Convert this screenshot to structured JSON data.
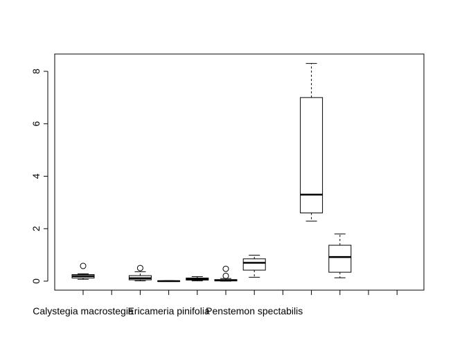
{
  "chart_data": {
    "type": "box",
    "title": "",
    "xlabel": "",
    "ylabel": "",
    "ylim": [
      0,
      8
    ],
    "y_ticks": [
      "0",
      "2",
      "4",
      "6",
      "8"
    ],
    "x_tick_count": 12,
    "category_labels": [
      {
        "text": "Calystegia macrostegia",
        "position": 1
      },
      {
        "text": "Ericameria pinifolia",
        "position": 4
      },
      {
        "text": "Penstemon spectabilis",
        "position": 7
      }
    ],
    "boxes": [
      {
        "position": 1,
        "min": 0.07,
        "q1": 0.12,
        "median": 0.19,
        "q3": 0.25,
        "max": 0.28,
        "outliers": [
          0.58
        ]
      },
      {
        "position": 3,
        "min": 0.01,
        "q1": 0.05,
        "median": 0.11,
        "q3": 0.21,
        "max": 0.36,
        "outliers": [
          0.5
        ]
      },
      {
        "position": 4,
        "min": 0.0,
        "q1": 0.0,
        "median": 0.0,
        "q3": 0.01,
        "max": 0.02,
        "outliers": []
      },
      {
        "position": 5,
        "min": 0.01,
        "q1": 0.04,
        "median": 0.08,
        "q3": 0.12,
        "max": 0.17,
        "outliers": []
      },
      {
        "position": 6,
        "min": 0.0,
        "q1": 0.01,
        "median": 0.03,
        "q3": 0.06,
        "max": 0.1,
        "outliers": [
          0.2,
          0.47
        ]
      },
      {
        "position": 7,
        "min": 0.15,
        "q1": 0.42,
        "median": 0.7,
        "q3": 0.85,
        "max": 0.99,
        "outliers": []
      },
      {
        "position": 9,
        "min": 2.29,
        "q1": 2.6,
        "median": 3.3,
        "q3": 7.0,
        "max": 8.3,
        "outliers": []
      },
      {
        "position": 10,
        "min": 0.13,
        "q1": 0.34,
        "median": 0.92,
        "q3": 1.37,
        "max": 1.8,
        "outliers": []
      }
    ]
  }
}
